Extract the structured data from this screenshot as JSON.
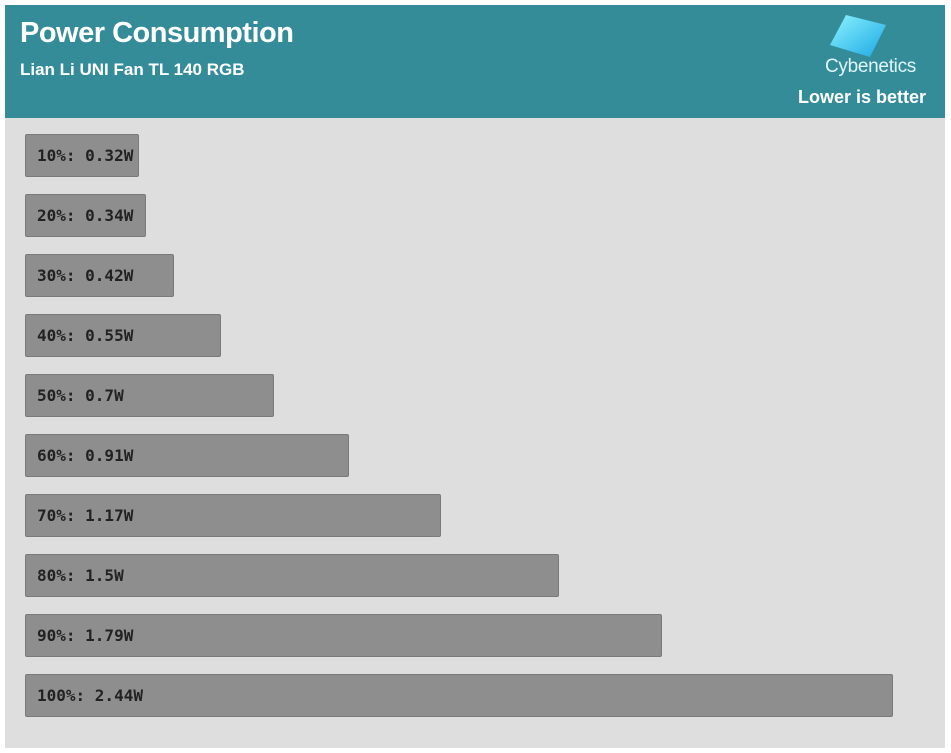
{
  "header": {
    "title": "Power Consumption",
    "subtitle": "Lian Li UNI Fan TL 140 RGB",
    "brand": "Cybenetics",
    "note": "Lower is better"
  },
  "colors": {
    "header_bg": "#358c99",
    "plot_bg": "#dedede",
    "bar": "#8e8e8e",
    "logo_gradient_start": "#7ff0ff",
    "logo_gradient_end": "#1fb0e8"
  },
  "chart_data": {
    "type": "bar",
    "orientation": "horizontal",
    "categories": [
      "10%",
      "20%",
      "30%",
      "40%",
      "50%",
      "60%",
      "70%",
      "80%",
      "90%",
      "100%"
    ],
    "values": [
      0.32,
      0.34,
      0.42,
      0.55,
      0.7,
      0.91,
      1.17,
      1.5,
      1.79,
      2.44
    ],
    "unit": "W",
    "labels": [
      "10%: 0.32W",
      "20%: 0.34W",
      "30%: 0.42W",
      "40%: 0.55W",
      "50%: 0.7W",
      "60%: 0.91W",
      "70%: 1.17W",
      "80%: 1.5W",
      "90%: 1.79W",
      "100%: 2.44W"
    ],
    "grid": false,
    "legend": "none"
  }
}
